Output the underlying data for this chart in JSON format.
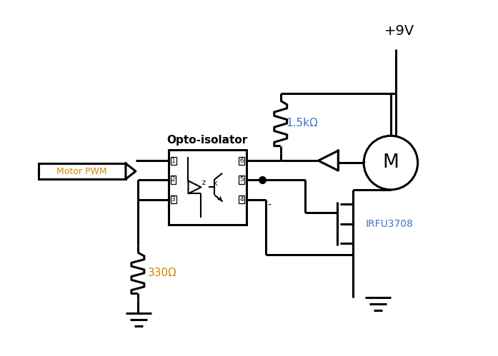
{
  "bg_color": "#ffffff",
  "line_color": "#000000",
  "text_color_blue": "#4472c4",
  "text_color_orange": "#cc8800",
  "label_motor_pwm": "Motor PWM",
  "label_opto": "Opto-isolator",
  "label_resistor1": "1.5kΩ",
  "label_resistor2": "330Ω",
  "label_mosfet": "IRFU3708",
  "label_motor": "M",
  "label_voltage": "+9V",
  "figsize": [
    6.97,
    4.99
  ],
  "dpi": 100
}
